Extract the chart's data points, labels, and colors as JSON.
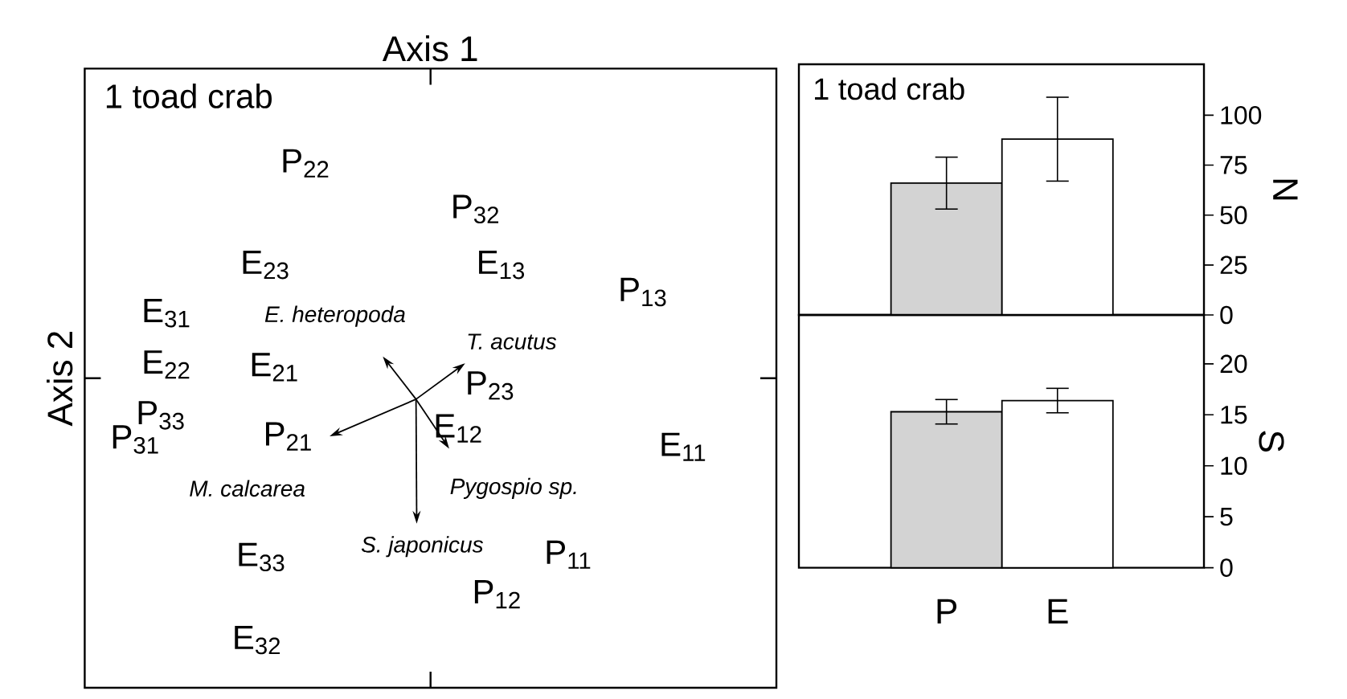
{
  "chart_data": [
    {
      "type": "other",
      "xlabel": "Axis 1",
      "ylabel": "Axis 2",
      "annotations": [
        "1 toad crab",
        "P$_{22}$",
        "P$_{32}$",
        "E$_{23}$",
        "E$_{13}$",
        "P$_{13}$",
        "E$_{31}$",
        "E$_{22}$",
        "E$_{21}$",
        "P$_{23}$",
        "P$_{31}$",
        "P$_{33}$",
        "P$_{21}$",
        "E$_{12}$",
        "E$_{11}$",
        "E$_{33}$",
        "P$_{11}$",
        "P$_{12}$",
        "E$_{32}$",
        "*E. heteropoda*",
        "*T. acutus*",
        "*M. calcarea*",
        "*Pygospio  sp.*",
        "*S. japonicus*"
      ]
    },
    {
      "type": "bar",
      "values": [
        66,
        88
      ],
      "colors": [
        "#d3d3d3",
        "#ffffff"
      ],
      "errors": [
        13,
        21
      ],
      "ylim": [
        0,
        125.5
      ],
      "yticks": [
        0,
        25,
        50,
        75,
        100
      ],
      "ylabel": "N",
      "annotations": [
        "1 toad crab"
      ],
      "tick_labels": "y"
    },
    {
      "type": "bar",
      "categories": [
        "P",
        "E"
      ],
      "values": [
        15.3,
        16.4
      ],
      "colors": [
        "#d3d3d3",
        "#ffffff"
      ],
      "errors": [
        1.2,
        1.2
      ],
      "ylim": [
        0,
        24.8
      ],
      "yticks": [
        0,
        5,
        10,
        15,
        20
      ],
      "ylabel": "S"
    }
  ]
}
